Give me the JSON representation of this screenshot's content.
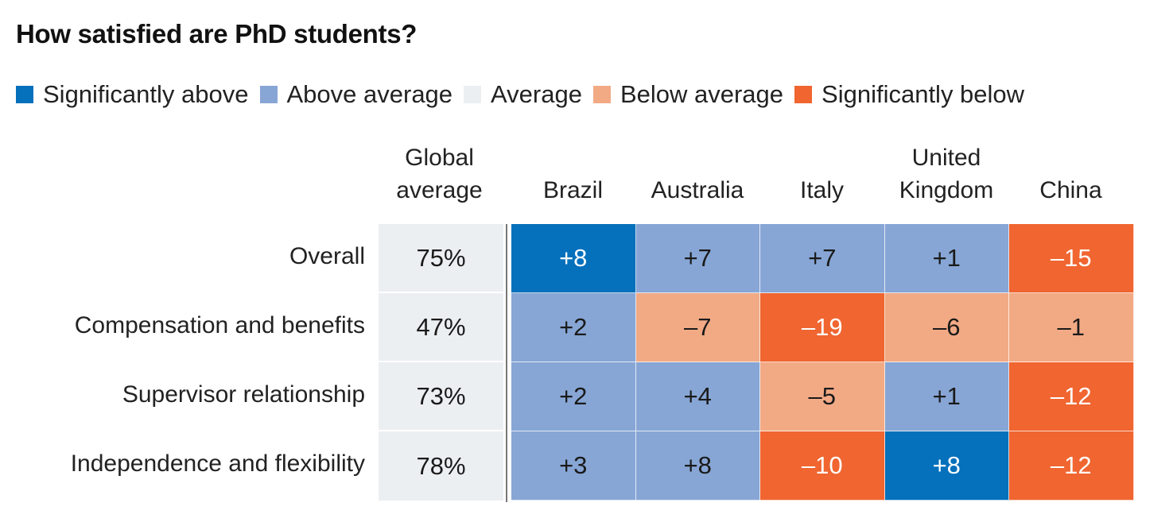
{
  "chart_data": {
    "type": "heatmap",
    "title": "How satisfied are PhD students?",
    "legend": [
      {
        "label": "Significantly above",
        "color": "#0570bc"
      },
      {
        "label": "Above average",
        "color": "#87a6d5"
      },
      {
        "label": "Average",
        "color": "#eceff2"
      },
      {
        "label": "Below average",
        "color": "#f2aa85"
      },
      {
        "label": "Significantly below",
        "color": "#f06530"
      }
    ],
    "global_header": "Global average",
    "columns": [
      "Brazil",
      "Australia",
      "Italy",
      "United Kingdom",
      "China"
    ],
    "column_headers": [
      [
        "Brazil"
      ],
      [
        "Australia"
      ],
      [
        "Italy"
      ],
      [
        "United",
        "Kingdom"
      ],
      [
        "China"
      ]
    ],
    "global_header_lines": [
      "Global",
      "average"
    ],
    "rows": [
      {
        "label": "Overall",
        "global_average": "75%",
        "values": [
          "+8",
          "+7",
          "+7",
          "+1",
          "–15"
        ],
        "categories": [
          "Significantly above",
          "Above average",
          "Above average",
          "Above average",
          "Significantly below"
        ]
      },
      {
        "label": "Compensation and benefits",
        "global_average": "47%",
        "values": [
          "+2",
          "–7",
          "–19",
          "–6",
          "–1"
        ],
        "categories": [
          "Above average",
          "Below average",
          "Significantly below",
          "Below average",
          "Below average"
        ]
      },
      {
        "label": "Supervisor relationship",
        "global_average": "73%",
        "values": [
          "+2",
          "+4",
          "–5",
          "+1",
          "–12"
        ],
        "categories": [
          "Above average",
          "Above average",
          "Below average",
          "Above average",
          "Significantly below"
        ]
      },
      {
        "label": "Independence and flexibility",
        "global_average": "78%",
        "values": [
          "+3",
          "+8",
          "–10",
          "+8",
          "–12"
        ],
        "categories": [
          "Above average",
          "Above average",
          "Significantly below",
          "Significantly above",
          "Significantly below"
        ]
      }
    ],
    "text_colors": {
      "Significantly above": "#ffffff",
      "Above average": "#1a1a1a",
      "Average": "#1a1a1a",
      "Below average": "#1a1a1a",
      "Significantly below": "#ffffff"
    }
  }
}
